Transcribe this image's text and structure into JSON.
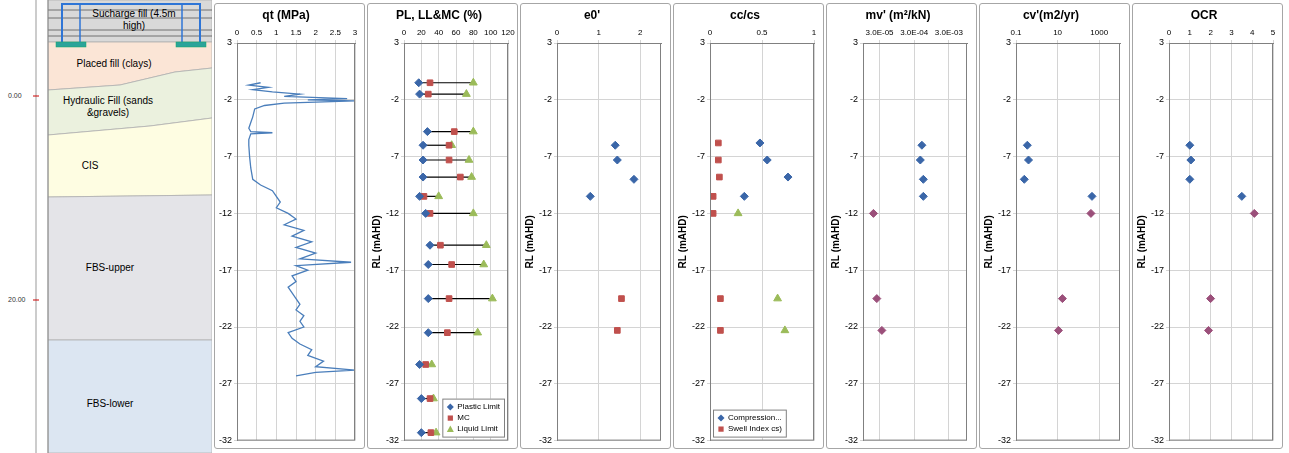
{
  "profile": {
    "layers": [
      "Sucharge fill (4.5m high)",
      "Placed fill (clays)",
      "Hydraulic Fill (sands &gravels)",
      "CIS",
      "FBS-upper",
      "FBS-lower"
    ],
    "ruler_labels": [
      "0.00",
      "20.00"
    ]
  },
  "chart_data": [
    {
      "type": "line",
      "title": "qt (MPa)",
      "xlim": [
        0,
        3
      ],
      "xticks": [
        0,
        0.5,
        1,
        1.5,
        2,
        2.5,
        3
      ],
      "ylim": [
        -32,
        3
      ],
      "yticks": [
        3,
        -2,
        -7,
        -12,
        -17,
        -22,
        -27,
        -32
      ],
      "grid": true,
      "series": [
        {
          "color": "#4A7EBB",
          "marker": "none",
          "line_style": "solid",
          "x": [
            0.6,
            0.3,
            0.8,
            0.4,
            0.9,
            1.6,
            1.2,
            2.8,
            1.8,
            3.0,
            1.2,
            0.7,
            0.45,
            0.4,
            0.35,
            0.3,
            0.35,
            0.9,
            0.35,
            0.3,
            0.3,
            0.32,
            0.35,
            0.4,
            0.6,
            0.9,
            1.0,
            1.1,
            1.0,
            1.3,
            1.5,
            1.2,
            1.7,
            1.4,
            1.9,
            1.5,
            2.0,
            1.6,
            2.9,
            1.5,
            1.8,
            1.4,
            1.5,
            1.3,
            1.4,
            1.5,
            1.6,
            1.5,
            1.7,
            1.6,
            1.7,
            1.3,
            1.4,
            1.6,
            1.9,
            1.8,
            2.2,
            2.0,
            3.0,
            2.0,
            1.5
          ],
          "y": [
            -0.5,
            -0.7,
            -0.9,
            -1.1,
            -1.3,
            -1.5,
            -1.7,
            -1.9,
            -2.0,
            -2.1,
            -2.3,
            -2.5,
            -2.8,
            -3.5,
            -4.0,
            -4.5,
            -4.8,
            -4.9,
            -5.0,
            -5.5,
            -6.0,
            -7.0,
            -8.0,
            -9.0,
            -9.5,
            -10.0,
            -10.5,
            -11.0,
            -11.5,
            -12.0,
            -12.5,
            -13.0,
            -13.5,
            -14.0,
            -14.5,
            -15.0,
            -15.5,
            -16.0,
            -16.3,
            -16.6,
            -17.0,
            -17.5,
            -18.0,
            -18.5,
            -19.0,
            -19.5,
            -20.0,
            -20.5,
            -21.0,
            -21.5,
            -22.0,
            -22.5,
            -23.0,
            -23.5,
            -24.0,
            -24.5,
            -25.0,
            -25.5,
            -25.8,
            -26.0,
            -26.3
          ]
        }
      ]
    },
    {
      "type": "dumbbell",
      "title": "PL, LL&MC (%)",
      "ylabel": "RL (mAHD)",
      "xlim": [
        0,
        120
      ],
      "xticks": [
        0,
        20,
        40,
        60,
        80,
        100,
        120
      ],
      "ylim": [
        -32,
        3
      ],
      "yticks": [
        3,
        -2,
        -7,
        -12,
        -17,
        -22,
        -27,
        -32
      ],
      "grid": true,
      "legend": "lower right",
      "series": [
        {
          "name": "Plastic Limit",
          "color": "#3A66A8",
          "marker": "diamond",
          "x": [
            17,
            18,
            27,
            22,
            22,
            22,
            18,
            25,
            30,
            28,
            28,
            28,
            18,
            20,
            20
          ],
          "y": [
            -0.5,
            -1.5,
            -4.8,
            -6,
            -7.3,
            -8.8,
            -10.5,
            -12,
            -14.8,
            -16.5,
            -19.5,
            -22.5,
            -25.3,
            -28.3,
            -31.3
          ]
        },
        {
          "name": "MC",
          "color": "#C0504D",
          "marker": "square",
          "x": [
            30,
            28,
            58,
            52,
            52,
            65,
            23,
            30,
            42,
            55,
            52,
            50,
            25,
            30,
            31
          ],
          "y": [
            -0.5,
            -1.5,
            -4.8,
            -6,
            -7.3,
            -8.8,
            -10.5,
            -12,
            -14.8,
            -16.5,
            -19.5,
            -22.5,
            -25.3,
            -28.3,
            -31.3
          ]
        },
        {
          "name": "Liquid Limit",
          "color": "#9BBB59",
          "marker": "triangle",
          "x": [
            80,
            72,
            80,
            55,
            75,
            78,
            40,
            80,
            95,
            92,
            102,
            85,
            32,
            34,
            37
          ],
          "y": [
            -0.5,
            -1.5,
            -4.8,
            -6,
            -7.3,
            -8.8,
            -10.5,
            -12,
            -14.8,
            -16.5,
            -19.5,
            -22.5,
            -25.3,
            -28.3,
            -31.3
          ]
        }
      ]
    },
    {
      "type": "scatter",
      "title": "e0'",
      "ylabel": "RL (mAHD)",
      "xlim": [
        0,
        2.5
      ],
      "xticks": [
        0,
        1,
        2
      ],
      "ylim": [
        -32,
        3
      ],
      "yticks": [
        3,
        -2,
        -7,
        -12,
        -17,
        -22,
        -27,
        -32
      ],
      "grid": true,
      "series": [
        {
          "color": "#3A66A8",
          "marker": "diamond",
          "x": [
            1.4,
            1.45,
            1.85,
            0.8
          ],
          "y": [
            -6,
            -7.3,
            -9,
            -10.5
          ]
        },
        {
          "color": "#C0504D",
          "marker": "square",
          "x": [
            1.55,
            1.45
          ],
          "y": [
            -19.5,
            -22.3
          ]
        }
      ]
    },
    {
      "type": "scatter",
      "title": "cc/cs",
      "ylabel": "RL (mAHD)",
      "xlim": [
        0,
        1
      ],
      "xticks": [
        0,
        0.5,
        1
      ],
      "ylim": [
        -32,
        3
      ],
      "yticks": [
        3,
        -2,
        -7,
        -12,
        -17,
        -22,
        -27,
        -32
      ],
      "grid": true,
      "legend": "lower left",
      "series": [
        {
          "name": "Compression...",
          "color": "#3A66A8",
          "marker": "diamond",
          "x": [
            0.48,
            0.55,
            0.75,
            0.33
          ],
          "y": [
            -5.8,
            -7.3,
            -8.8,
            -10.5
          ]
        },
        {
          "name": "Swell Index cs)",
          "color": "#C0504D",
          "marker": "square",
          "x": [
            0.08,
            0.08,
            0.09,
            0.03,
            0.03,
            0.1,
            0.1
          ],
          "y": [
            -5.8,
            -7.3,
            -8.8,
            -10.5,
            -12,
            -19.5,
            -22.3
          ]
        },
        {
          "color": "#9BBB59",
          "marker": "triangle",
          "x": [
            0.27,
            0.65,
            0.72
          ],
          "y": [
            -12,
            -19.5,
            -22.3
          ]
        }
      ]
    },
    {
      "type": "scatter",
      "title": "mv' (m²/kN)",
      "ylabel": "RL (mAHD)",
      "log": "x",
      "xlim": [
        1e-05,
        0.01
      ],
      "xticks": [
        {
          "value": 3e-05,
          "label": "3.0E-05"
        },
        {
          "value": 0.0003,
          "label": "3.0E-04"
        },
        {
          "value": 0.003,
          "label": "3.0E-03"
        }
      ],
      "ylim": [
        -32,
        3
      ],
      "yticks": [
        3,
        -2,
        -7,
        -12,
        -17,
        -22,
        -27,
        -32
      ],
      "grid": true,
      "series": [
        {
          "color": "#3A66A8",
          "marker": "diamond",
          "x": [
            0.0005,
            0.00045,
            0.00055,
            0.00055
          ],
          "y": [
            -6,
            -7.3,
            -9,
            -10.5
          ]
        },
        {
          "color": "#9B4F7A",
          "marker": "diamond",
          "x": [
            2e-05,
            2.5e-05,
            3.5e-05
          ],
          "y": [
            -12,
            -19.5,
            -22.3
          ]
        }
      ]
    },
    {
      "type": "scatter",
      "title": "cv'(m2/yr)",
      "ylabel": "RL (mAHD)",
      "log": "x",
      "xlim": [
        0.1,
        10000
      ],
      "xticks": [
        0.1,
        10,
        1000
      ],
      "ylim": [
        -32,
        3
      ],
      "yticks": [
        3,
        -2,
        -7,
        -12,
        -17,
        -22,
        -27,
        -32
      ],
      "grid": true,
      "series": [
        {
          "color": "#3A66A8",
          "marker": "diamond",
          "x": [
            0.35,
            0.4,
            0.25,
            450
          ],
          "y": [
            -6,
            -7.3,
            -9,
            -10.5
          ]
        },
        {
          "color": "#9B4F7A",
          "marker": "diamond",
          "x": [
            400,
            17,
            11
          ],
          "y": [
            -12,
            -19.5,
            -22.3
          ]
        }
      ]
    },
    {
      "type": "scatter",
      "title": "OCR",
      "ylabel": "RL (mAHD)",
      "xlim": [
        0,
        5
      ],
      "xticks": [
        0,
        1,
        2,
        3,
        4,
        5
      ],
      "ylim": [
        -32,
        3
      ],
      "yticks": [
        3,
        -2,
        -7,
        -12,
        -17,
        -22,
        -27,
        -32
      ],
      "grid": true,
      "series": [
        {
          "color": "#3A66A8",
          "marker": "diamond",
          "x": [
            1.0,
            1.05,
            1.0,
            3.5
          ],
          "y": [
            -6,
            -7.3,
            -9,
            -10.5
          ]
        },
        {
          "color": "#9B4F7A",
          "marker": "diamond",
          "x": [
            4.1,
            2.0,
            1.9
          ],
          "y": [
            -12,
            -19.5,
            -22.3
          ]
        }
      ]
    }
  ]
}
